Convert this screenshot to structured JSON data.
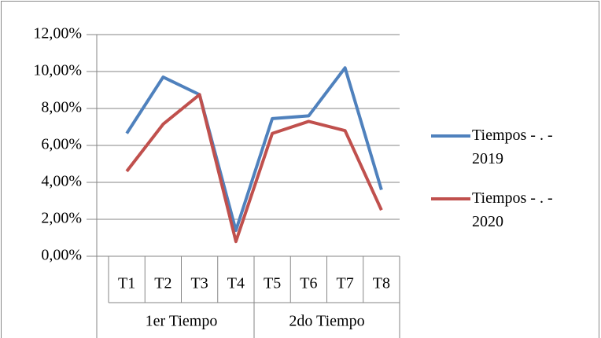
{
  "chart_data": {
    "type": "line",
    "categories": [
      "T1",
      "T2",
      "T3",
      "T4",
      "T5",
      "T6",
      "T7",
      "T8"
    ],
    "groups": [
      "1er Tiempo",
      "2do Tiempo"
    ],
    "series": [
      {
        "name": "Tiempos - . - 2019",
        "color": "#4f81bd",
        "values": [
          6.65,
          9.7,
          8.75,
          1.4,
          7.45,
          7.6,
          10.2,
          3.6
        ]
      },
      {
        "name": "Tiempos - . - 2020",
        "color": "#c0504d",
        "values": [
          4.6,
          7.15,
          8.75,
          0.8,
          6.65,
          7.3,
          6.8,
          2.5
        ]
      }
    ],
    "ylim": [
      0,
      12
    ],
    "yticks": [
      {
        "value": 0,
        "label": "0,00%"
      },
      {
        "value": 2,
        "label": "2,00%"
      },
      {
        "value": 4,
        "label": "4,00%"
      },
      {
        "value": 6,
        "label": "6,00%"
      },
      {
        "value": 8,
        "label": "8,00%"
      },
      {
        "value": 10,
        "label": "10,00%"
      },
      {
        "value": 12,
        "label": "12,00%"
      }
    ],
    "grid": true,
    "legend": "right"
  }
}
